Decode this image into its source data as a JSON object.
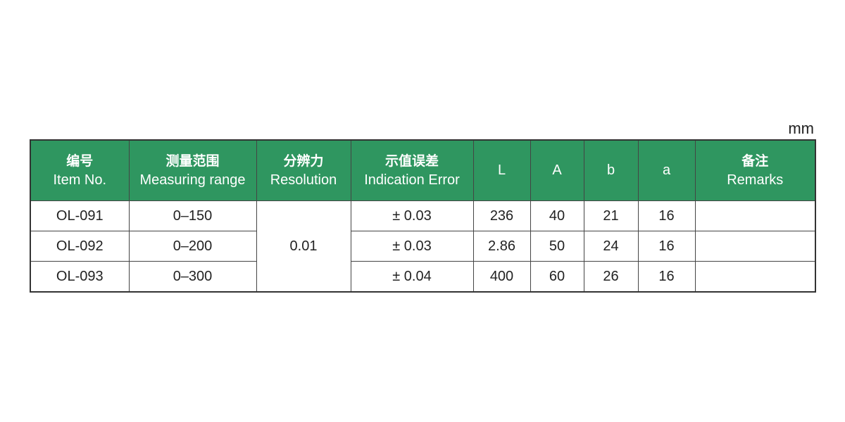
{
  "unit": "mm",
  "headers": [
    {
      "zh": "编号",
      "en": "Item No."
    },
    {
      "zh": "测量范围",
      "en": "Measuring range"
    },
    {
      "zh": "分辨力",
      "en": "Resolution"
    },
    {
      "zh": "示值误差",
      "en": "Indication Error"
    },
    {
      "zh": "",
      "en": "L"
    },
    {
      "zh": "",
      "en": "A"
    },
    {
      "zh": "",
      "en": "b"
    },
    {
      "zh": "",
      "en": "a"
    },
    {
      "zh": "备注",
      "en": "Remarks"
    }
  ],
  "resolution": "0.01",
  "rows": [
    {
      "item": "OL-091",
      "range": "0–150",
      "error": "± 0.03",
      "L": "236",
      "A": "40",
      "b": "21",
      "a": "16",
      "remarks": ""
    },
    {
      "item": "OL-092",
      "range": "0–200",
      "error": "± 0.03",
      "L": "2.86",
      "A": "50",
      "b": "24",
      "a": "16",
      "remarks": ""
    },
    {
      "item": "OL-093",
      "range": "0–300",
      "error": "± 0.04",
      "L": "400",
      "A": "60",
      "b": "26",
      "a": "16",
      "remarks": ""
    }
  ],
  "colors": {
    "header_bg": "#2f9660",
    "header_text": "#ffffff"
  }
}
